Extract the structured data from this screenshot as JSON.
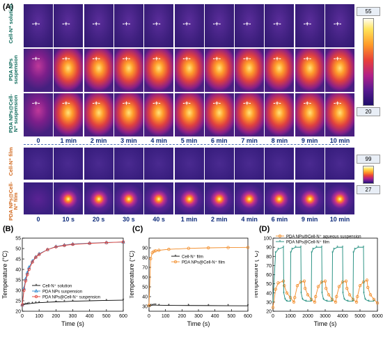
{
  "panels": {
    "A": "(A)",
    "B": "(B)",
    "C": "(C)",
    "D": "(D)"
  },
  "row_labels": {
    "r1": "Cell-N⁺ solution",
    "r2": "PDA NPs suspension",
    "r3": "PDA NPs@Cell-N⁺ suspension",
    "r4": "Cell-N⁺ film",
    "r5": "PDA NPs@Cell-N⁺ film"
  },
  "time_labels_top": [
    "0",
    "1 min",
    "2 min",
    "3 min",
    "4 min",
    "5 min",
    "6 min",
    "7 min",
    "8 min",
    "9 min",
    "10 min"
  ],
  "time_labels_bottom": [
    "0",
    "10 s",
    "20 s",
    "30 s",
    "40 s",
    "1 min",
    "2 min",
    "4 min",
    "6 min",
    "9 min",
    "10 min"
  ],
  "colorbar_top": {
    "max": "55",
    "min": "20"
  },
  "colorbar_bottom": {
    "max": "99",
    "min": "27"
  },
  "chart_data": [
    {
      "type": "line",
      "panel": "B",
      "xlabel": "Time (s)",
      "ylabel": "Temperature (°C)",
      "xlim": [
        0,
        600
      ],
      "ylim": [
        20,
        55
      ],
      "xticks": [
        0,
        100,
        200,
        300,
        400,
        500,
        600
      ],
      "yticks": [
        20,
        25,
        30,
        35,
        40,
        45,
        50,
        55
      ],
      "yticklabels": [
        "20",
        "25",
        "30",
        "35",
        "40",
        "45",
        "50",
        "55"
      ],
      "legend_position": "center-right",
      "series": [
        {
          "name": "Cell-N⁺ solution",
          "color": "#000000",
          "marker": "star",
          "x": [
            0,
            10,
            20,
            30,
            40,
            60,
            80,
            100,
            150,
            200,
            250,
            300,
            400,
            500,
            600
          ],
          "y": [
            23,
            23.2,
            23.4,
            23.5,
            23.6,
            23.8,
            24.0,
            24.1,
            24.3,
            24.5,
            24.6,
            24.8,
            25.0,
            25.2,
            25.3
          ]
        },
        {
          "name": "PDA NPs suspension",
          "color": "#2f8bd0",
          "marker": "triangle",
          "x": [
            0,
            10,
            20,
            30,
            40,
            60,
            80,
            100,
            150,
            200,
            250,
            300,
            400,
            500,
            600
          ],
          "y": [
            23,
            31,
            35.5,
            38.5,
            41,
            44,
            46,
            47.5,
            49.5,
            51,
            51.7,
            52.2,
            52.6,
            52.9,
            53.1
          ]
        },
        {
          "name": "PDA NPs@Cell-N⁺ suspension",
          "color": "#e23b30",
          "marker": "circle",
          "x": [
            0,
            10,
            20,
            30,
            40,
            60,
            80,
            100,
            150,
            200,
            250,
            300,
            400,
            500,
            600
          ],
          "y": [
            23,
            30,
            34.5,
            37.5,
            40,
            43.5,
            45.8,
            47.2,
            49.5,
            50.8,
            51.5,
            52.0,
            52.5,
            52.8,
            53.2
          ]
        }
      ]
    },
    {
      "type": "line",
      "panel": "C",
      "xlabel": "Time (s)",
      "ylabel": "Temperature (°C)",
      "xlim": [
        0,
        600
      ],
      "ylim": [
        25,
        100
      ],
      "xticks": [
        0,
        100,
        200,
        300,
        400,
        500,
        600
      ],
      "yticks": [
        30,
        40,
        50,
        60,
        70,
        80,
        90
      ],
      "yticklabels": [
        "30",
        "40",
        "50",
        "60",
        "70",
        "80",
        "90"
      ],
      "legend_position": "center-right",
      "series": [
        {
          "name": "Cell-N⁺ film",
          "color": "#000000",
          "marker": "star",
          "x": [
            0,
            10,
            20,
            30,
            40,
            60,
            120,
            240,
            360,
            480,
            600
          ],
          "y": [
            30.5,
            31,
            31.2,
            31.4,
            31.3,
            31.2,
            31.0,
            30.9,
            30.8,
            30.7,
            30.6
          ]
        },
        {
          "name": "PDA NPs@Cell-N⁺ film",
          "color": "#f28c28",
          "marker": "circle",
          "x": [
            0,
            10,
            20,
            30,
            40,
            60,
            120,
            240,
            360,
            480,
            600
          ],
          "y": [
            31,
            79,
            85,
            86.5,
            87,
            87.5,
            88.5,
            89.5,
            90,
            90.3,
            90.5
          ]
        }
      ]
    },
    {
      "type": "line",
      "panel": "D",
      "xlabel": "Time (s)",
      "ylabel": "Temperature (°C)",
      "xlim": [
        0,
        6000
      ],
      "ylim": [
        20,
        100
      ],
      "xticks": [
        0,
        1000,
        2000,
        3000,
        4000,
        5000,
        6000
      ],
      "yticks": [
        20,
        30,
        40,
        50,
        60,
        70,
        80,
        90,
        100
      ],
      "yticklabels": [
        "20",
        "30",
        "40",
        "50",
        "60",
        "70",
        "80",
        "90",
        "100"
      ],
      "legend_position": "top",
      "series": [
        {
          "name": "PDA NPs@Cell-N⁺ aqueous suspension",
          "color": "#f28c28",
          "marker": "circle",
          "x": [
            0,
            150,
            300,
            600,
            650,
            800,
            1000,
            1200,
            1250,
            1400,
            1600,
            1800,
            1850,
            2000,
            2200,
            2400,
            2450,
            2600,
            2800,
            3000,
            3050,
            3200,
            3400,
            3600,
            3650,
            3800,
            4000,
            4200,
            4250,
            4400,
            4600,
            4800,
            4850,
            5000,
            5200,
            5400,
            5450,
            5600,
            5800,
            6000
          ],
          "y": [
            24,
            44,
            51,
            53,
            48,
            40,
            35,
            30,
            35,
            48,
            52,
            53,
            45,
            38,
            33,
            30,
            36,
            47,
            52,
            53,
            45,
            38,
            33,
            30,
            36,
            47,
            52,
            53,
            45,
            38,
            33,
            30,
            36,
            48,
            52,
            54,
            46,
            38,
            33,
            29
          ]
        },
        {
          "name": "PDA NPs@Cell-N⁺ film",
          "color": "#1a8a7a",
          "marker": "star",
          "x": [
            0,
            150,
            300,
            600,
            620,
            700,
            800,
            1000,
            1020,
            1100,
            1300,
            1600,
            1620,
            1700,
            1900,
            2200,
            2220,
            2300,
            2500,
            2800,
            2820,
            2900,
            3100,
            3400,
            3420,
            3500,
            3700,
            4000,
            4020,
            4100,
            4300,
            4600,
            4620,
            4700,
            4900,
            5200,
            5220,
            5300,
            5500,
            5800
          ],
          "y": [
            30,
            84,
            88,
            90,
            40,
            33,
            31,
            31,
            84,
            88,
            90,
            90,
            40,
            33,
            31,
            31,
            84,
            88,
            90,
            90,
            40,
            33,
            31,
            31,
            84,
            88,
            90,
            90,
            40,
            33,
            31,
            31,
            84,
            88,
            90,
            90,
            40,
            33,
            31,
            31
          ]
        }
      ]
    }
  ]
}
